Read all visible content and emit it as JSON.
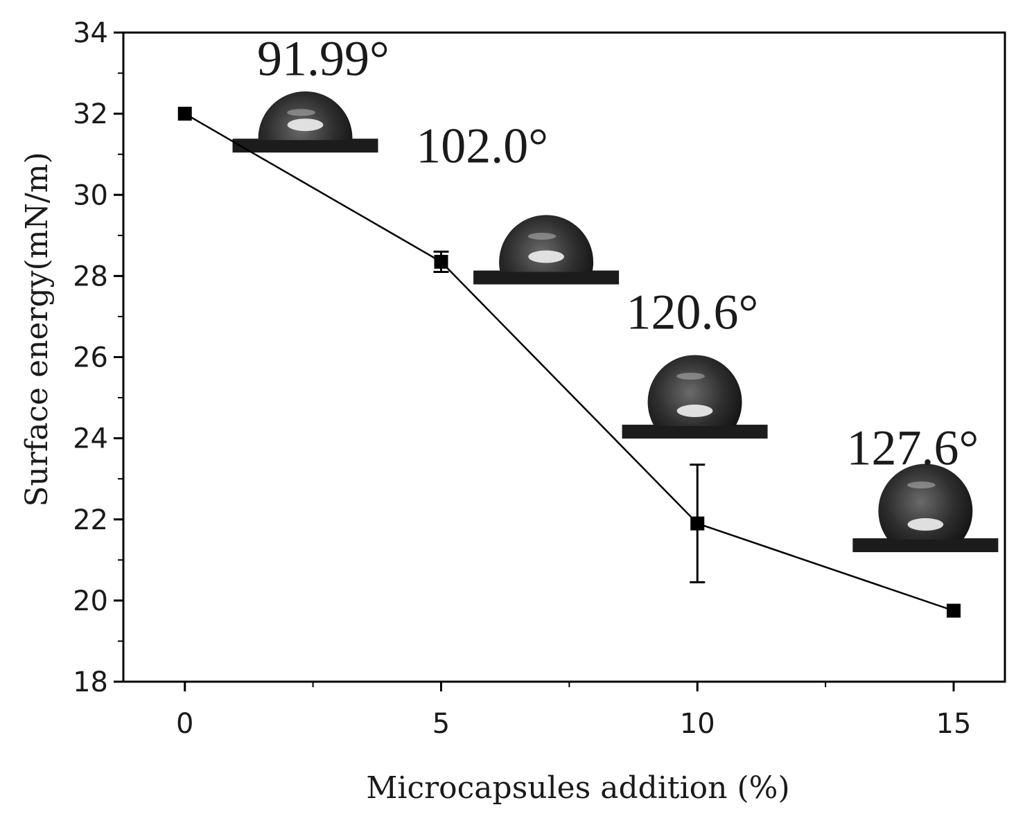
{
  "chart_data": {
    "type": "line",
    "title": "",
    "xlabel": "Microcapsules addition (%)",
    "ylabel": "Surface energy(mN/m)",
    "xlim": [
      -1.2,
      16.0
    ],
    "ylim": [
      18,
      34
    ],
    "xticks": [
      0,
      5,
      10,
      15
    ],
    "yticks": [
      18,
      20,
      22,
      24,
      26,
      28,
      30,
      32,
      34
    ],
    "tick_labels_x": [
      "0",
      "5",
      "10",
      "15"
    ],
    "tick_labels_y": [
      "18",
      "20",
      "22",
      "24",
      "26",
      "28",
      "30",
      "32",
      "34"
    ],
    "grid": false,
    "legend": "none",
    "series": [
      {
        "x": [
          0,
          5,
          10,
          15
        ],
        "y": [
          32.0,
          28.35,
          21.9,
          19.75
        ],
        "error": [
          0,
          0.25,
          1.45,
          0
        ],
        "marker": "square",
        "color": "#000000"
      }
    ],
    "annotations": [
      {
        "text": "91.99°",
        "x": 2.7,
        "y": 32.95
      },
      {
        "text": "102.0°",
        "x": 5.8,
        "y": 30.8
      },
      {
        "text": "120.6°",
        "x": 9.9,
        "y": 26.7
      },
      {
        "text": "127.6°",
        "x": 14.2,
        "y": 23.35
      }
    ],
    "droplets": [
      {
        "angle_label": "91.99°",
        "x": 2.35,
        "y": 31.35,
        "contact_angle": 91.99
      },
      {
        "angle_label": "102.0°",
        "x": 7.05,
        "y": 28.1,
        "contact_angle": 102.0
      },
      {
        "angle_label": "120.6°",
        "x": 9.95,
        "y": 24.3,
        "contact_angle": 120.6
      },
      {
        "angle_label": "127.6°",
        "x": 14.45,
        "y": 21.5,
        "contact_angle": 127.6
      }
    ]
  }
}
